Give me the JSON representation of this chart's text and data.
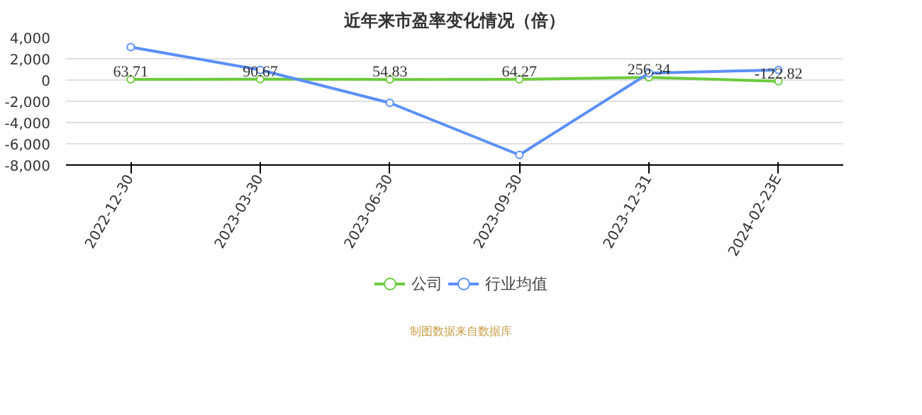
{
  "chart_data": {
    "type": "line",
    "title": "近年来市盈率变化情况（倍）",
    "categories": [
      "2022-12-30",
      "2023-03-30",
      "2023-06-30",
      "2023-09-30",
      "2023-12-31",
      "2024-02-23E"
    ],
    "series": [
      {
        "name": "公司",
        "color": "#6ccb3c",
        "values": [
          63.71,
          90.67,
          54.83,
          64.27,
          256.34,
          -122.82
        ],
        "data_labels": true
      },
      {
        "name": "行业均值",
        "color": "#5b8ff9",
        "values": [
          3100,
          950,
          -2150,
          -7050,
          650,
          950
        ]
      }
    ],
    "ylim": [
      -8000,
      4000
    ],
    "yticks": [
      {
        "value": -8000,
        "label": "-8,000"
      },
      {
        "value": -6000,
        "label": "-6,000"
      },
      {
        "value": -4000,
        "label": "-4,000"
      },
      {
        "value": -2000,
        "label": "-2,000"
      },
      0,
      {
        "value": 2000,
        "label": "2,000"
      },
      {
        "value": 4000,
        "label": "4,000"
      }
    ],
    "grid": "y",
    "legend": "bottom",
    "marker": "circle",
    "line_style": "solid",
    "annotations": [
      "制图数据来自数据库"
    ]
  }
}
